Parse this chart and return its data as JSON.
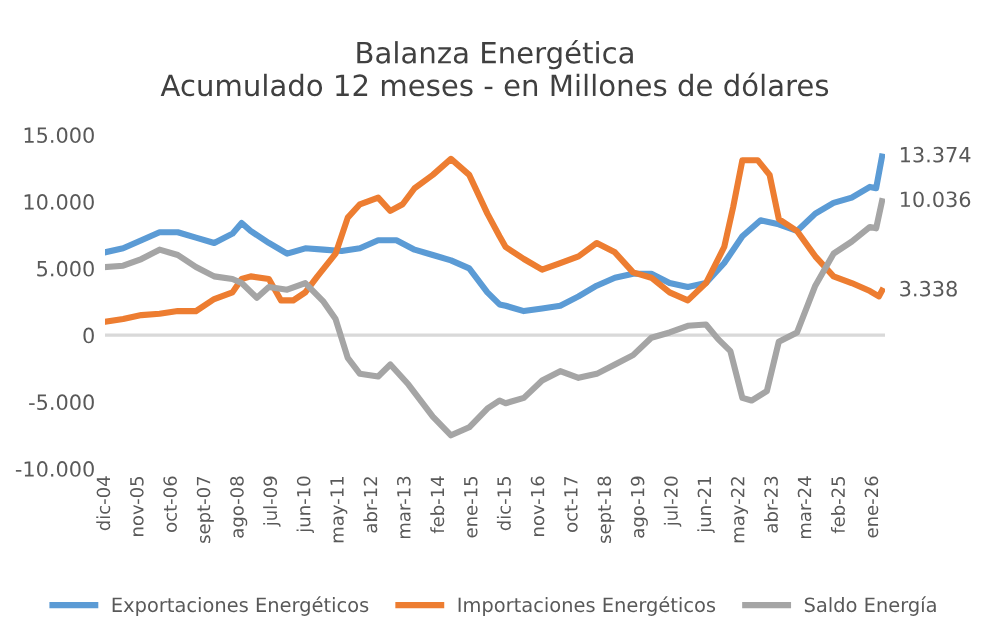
{
  "chart_data": {
    "type": "line",
    "title": "Balanza Energética\nAcumulado 12 meses - en Millones de dólares",
    "xlim": [
      "2004-12",
      "2026-05"
    ],
    "xticks": [
      {
        "value": "2004-12",
        "label": "dic-04"
      },
      {
        "value": "2005-11",
        "label": "nov-05"
      },
      {
        "value": "2006-10",
        "label": "oct-06"
      },
      {
        "value": "2007-09",
        "label": "sept-07"
      },
      {
        "value": "2008-08",
        "label": "ago-08"
      },
      {
        "value": "2009-07",
        "label": "jul-09"
      },
      {
        "value": "2010-06",
        "label": "jun-10"
      },
      {
        "value": "2011-05",
        "label": "may-11"
      },
      {
        "value": "2012-04",
        "label": "abr-12"
      },
      {
        "value": "2013-03",
        "label": "mar-13"
      },
      {
        "value": "2014-02",
        "label": "feb-14"
      },
      {
        "value": "2015-01",
        "label": "ene-15"
      },
      {
        "value": "2015-12",
        "label": "dic-15"
      },
      {
        "value": "2016-11",
        "label": "nov-16"
      },
      {
        "value": "2017-10",
        "label": "oct-17"
      },
      {
        "value": "2018-09",
        "label": "sept-18"
      },
      {
        "value": "2019-08",
        "label": "ago-19"
      },
      {
        "value": "2020-07",
        "label": "jul-20"
      },
      {
        "value": "2021-06",
        "label": "jun-21"
      },
      {
        "value": "2022-05",
        "label": "may-22"
      },
      {
        "value": "2023-04",
        "label": "abr-23"
      },
      {
        "value": "2024-03",
        "label": "mar-24"
      },
      {
        "value": "2025-02",
        "label": "feb-25"
      },
      {
        "value": "2026-01",
        "label": "ene-26"
      }
    ],
    "ylim": [
      -10000,
      15000
    ],
    "yticks": [
      {
        "value": -10000,
        "label": "-10.000"
      },
      {
        "value": -5000,
        "label": "-5.000"
      },
      0,
      {
        "value": 5000,
        "label": "5.000"
      },
      {
        "value": 10000,
        "label": "10.000"
      },
      {
        "value": 15000,
        "label": "15.000"
      }
    ],
    "grid": false,
    "ref_lines": [
      {
        "axis": "y",
        "value": 0,
        "color": "#d9d9d9"
      }
    ],
    "legend": "bottom",
    "marker": "none",
    "line_style": "solid",
    "series": [
      {
        "name": "Exportaciones Energéticos",
        "color": "#5b9bd5",
        "x": [
          "2004-12",
          "2005-06",
          "2005-12",
          "2006-06",
          "2006-12",
          "2007-06",
          "2007-12",
          "2008-06",
          "2008-09",
          "2008-12",
          "2009-06",
          "2009-12",
          "2010-06",
          "2010-12",
          "2011-06",
          "2011-12",
          "2012-06",
          "2012-12",
          "2013-06",
          "2013-12",
          "2014-06",
          "2014-12",
          "2015-06",
          "2015-10",
          "2015-12",
          "2016-06",
          "2016-12",
          "2017-06",
          "2017-12",
          "2018-06",
          "2018-12",
          "2019-06",
          "2019-12",
          "2020-06",
          "2020-12",
          "2021-06",
          "2021-12",
          "2022-06",
          "2022-12",
          "2023-06",
          "2023-12",
          "2024-06",
          "2024-12",
          "2025-06",
          "2025-12",
          "2026-02",
          "2026-04"
        ],
        "values": [
          6200,
          6500,
          7100,
          7700,
          7700,
          7300,
          6900,
          7600,
          8400,
          7800,
          6900,
          6100,
          6500,
          6400,
          6300,
          6500,
          7100,
          7100,
          6400,
          6000,
          5600,
          5000,
          3200,
          2300,
          2200,
          1800,
          2000,
          2200,
          2900,
          3700,
          4300,
          4600,
          4600,
          3900,
          3600,
          3900,
          5400,
          7400,
          8600,
          8300,
          7800,
          9100,
          9900,
          10300,
          11100,
          11000,
          13374
        ]
      },
      {
        "name": "Importaciones Energéticos",
        "color": "#ed7d31",
        "x": [
          "2004-12",
          "2005-06",
          "2005-12",
          "2006-06",
          "2006-12",
          "2007-06",
          "2007-12",
          "2008-06",
          "2008-09",
          "2008-12",
          "2009-06",
          "2009-10",
          "2010-02",
          "2010-06",
          "2010-10",
          "2011-04",
          "2011-08",
          "2011-12",
          "2012-06",
          "2012-10",
          "2013-02",
          "2013-06",
          "2013-12",
          "2014-06",
          "2014-12",
          "2015-06",
          "2015-10",
          "2015-12",
          "2016-06",
          "2016-12",
          "2017-06",
          "2017-12",
          "2018-06",
          "2018-12",
          "2019-06",
          "2019-12",
          "2020-06",
          "2020-12",
          "2021-06",
          "2021-12",
          "2022-03",
          "2022-06",
          "2022-11",
          "2023-03",
          "2023-06",
          "2023-12",
          "2024-06",
          "2024-12",
          "2025-06",
          "2025-12",
          "2026-03",
          "2026-04"
        ],
        "values": [
          1000,
          1200,
          1500,
          1600,
          1800,
          1800,
          2700,
          3200,
          4200,
          4400,
          4200,
          2600,
          2600,
          3200,
          4400,
          6100,
          8800,
          9800,
          10300,
          9300,
          9800,
          11000,
          12000,
          13200,
          12000,
          9100,
          7400,
          6600,
          5700,
          4900,
          5400,
          5900,
          6900,
          6200,
          4700,
          4300,
          3200,
          2600,
          3900,
          6600,
          9600,
          13100,
          13100,
          12000,
          8700,
          7800,
          5900,
          4400,
          3900,
          3300,
          2900,
          3338
        ]
      },
      {
        "name": "Saldo Energía",
        "color": "#a5a5a5",
        "x": [
          "2004-12",
          "2005-06",
          "2005-12",
          "2006-06",
          "2006-12",
          "2007-06",
          "2007-12",
          "2008-06",
          "2008-09",
          "2009-02",
          "2009-06",
          "2009-12",
          "2010-06",
          "2010-12",
          "2011-04",
          "2011-08",
          "2011-12",
          "2012-06",
          "2012-10",
          "2013-04",
          "2013-12",
          "2014-06",
          "2014-12",
          "2015-06",
          "2015-10",
          "2015-12",
          "2016-06",
          "2016-12",
          "2017-06",
          "2017-12",
          "2018-06",
          "2018-12",
          "2019-06",
          "2019-12",
          "2020-06",
          "2020-12",
          "2021-06",
          "2021-10",
          "2022-02",
          "2022-06",
          "2022-09",
          "2023-02",
          "2023-06",
          "2023-12",
          "2024-06",
          "2024-12",
          "2025-06",
          "2025-12",
          "2026-02",
          "2026-04"
        ],
        "values": [
          5100,
          5200,
          5700,
          6400,
          6000,
          5100,
          4400,
          4200,
          3900,
          2800,
          3600,
          3400,
          3900,
          2500,
          1200,
          -1700,
          -2900,
          -3100,
          -2200,
          -3700,
          -6100,
          -7500,
          -6900,
          -5500,
          -4900,
          -5100,
          -4700,
          -3400,
          -2700,
          -3200,
          -2900,
          -2200,
          -1500,
          -200,
          200,
          700,
          800,
          -300,
          -1200,
          -4700,
          -4900,
          -4200,
          -500,
          200,
          3700,
          6100,
          7000,
          8100,
          8000,
          10036
        ]
      }
    ],
    "annotations": [
      {
        "text": "13.374",
        "x": "2026-04",
        "y": 13374
      },
      {
        "text": "10.036",
        "x": "2026-04",
        "y": 10036
      },
      {
        "text": "3.338",
        "x": "2026-04",
        "y": 3338
      }
    ]
  }
}
